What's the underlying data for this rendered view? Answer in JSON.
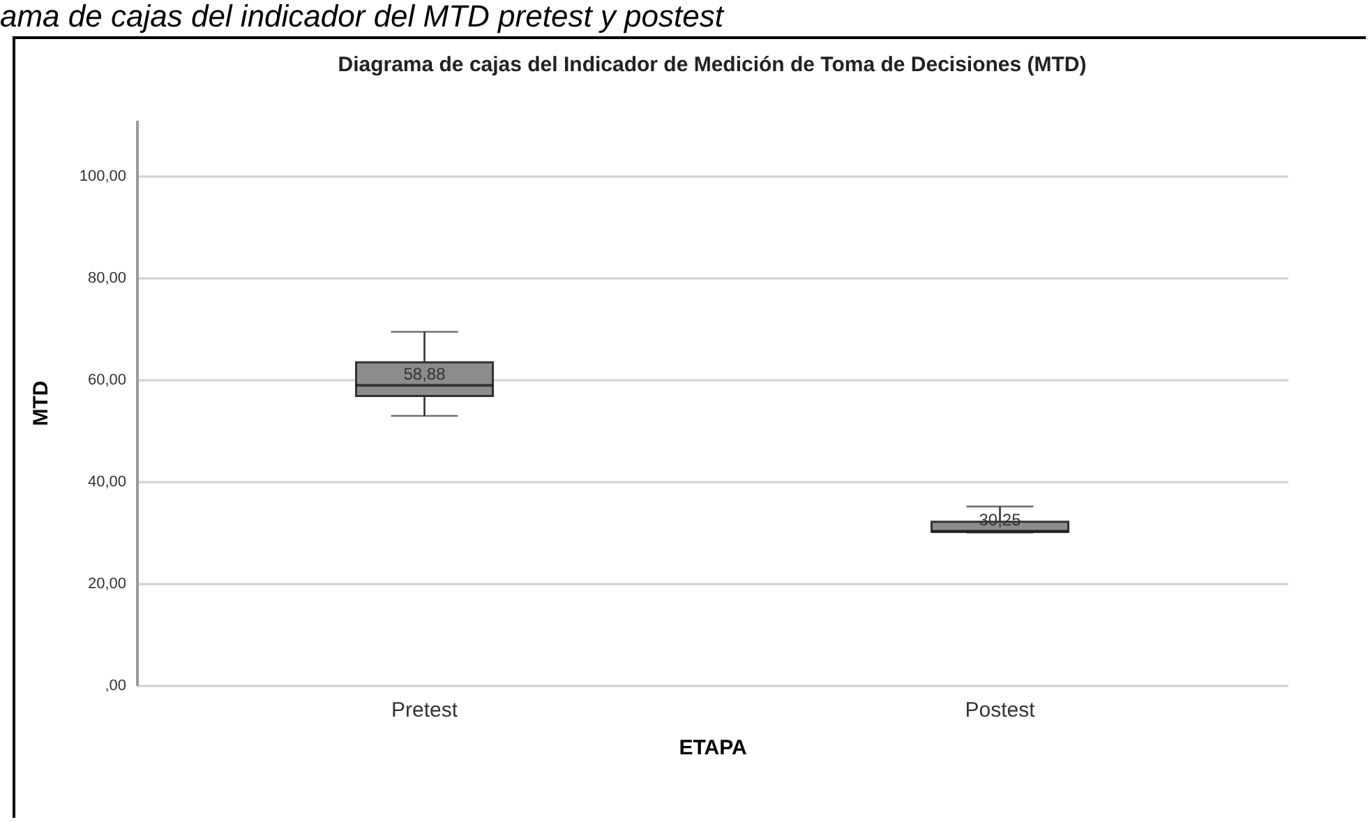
{
  "chart_data": {
    "type": "box",
    "title": "Diagrama de cajas del Indicador de Medición de Toma de Decisiones (MTD)",
    "xlabel": "ETAPA",
    "ylabel": "MTD",
    "categories": [
      "Pretest",
      "Postest"
    ],
    "boxes": [
      {
        "low": 52.9,
        "q1": 56.8,
        "median": 58.88,
        "q3": 63.4,
        "high": 69.4
      },
      {
        "low": 30.0,
        "q1": 30.1,
        "median": 30.25,
        "q3": 32.1,
        "high": 35.1
      }
    ],
    "color": "#8c8c8c",
    "ylim": [
      0,
      111
    ],
    "yticks": [
      {
        "value": 0,
        "label": ",00"
      },
      {
        "value": 20,
        "label": "20,00"
      },
      {
        "value": 40,
        "label": "40,00"
      },
      {
        "value": 60,
        "label": "60,00"
      },
      {
        "value": 80,
        "label": "80,00"
      },
      {
        "value": 100,
        "label": "100,00"
      }
    ],
    "grid": "y",
    "annotations": [
      "ama de cajas del indicador del MTD pretest y postest",
      {
        "text": "58,88",
        "x": "Pretest",
        "y": 58.88
      },
      {
        "text": "30,25",
        "x": "Postest",
        "y": 30.25
      }
    ]
  }
}
